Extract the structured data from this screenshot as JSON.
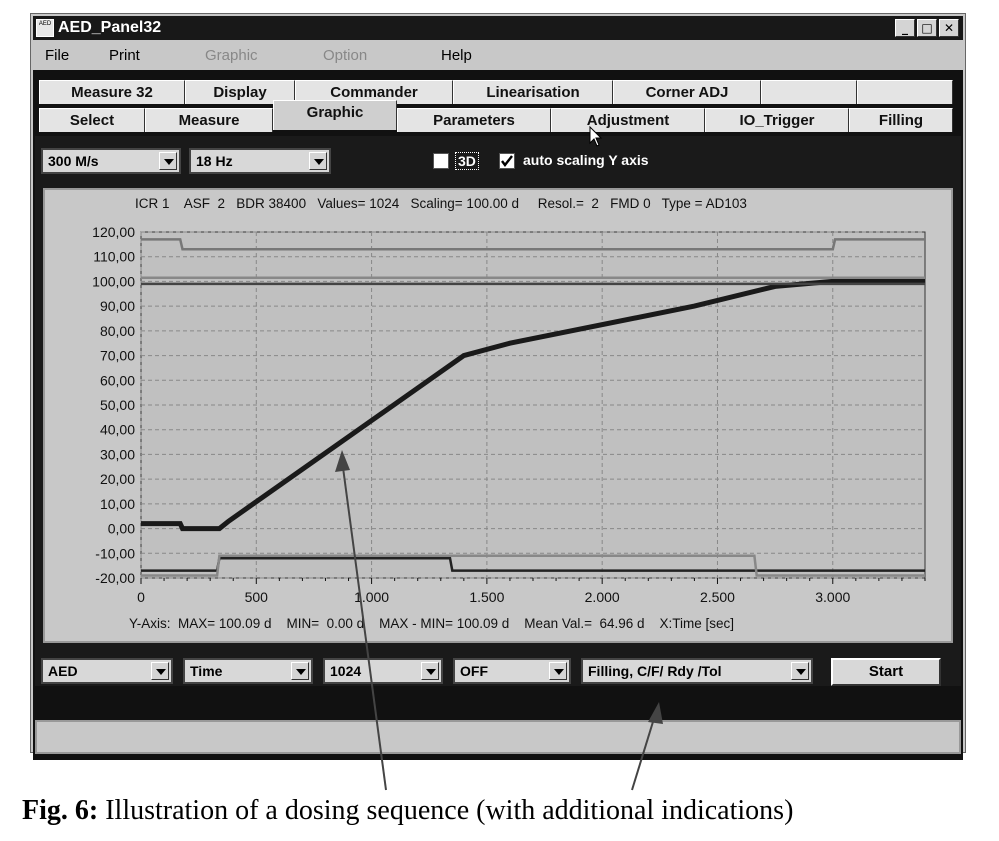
{
  "window": {
    "title": "AED_Panel32",
    "icon_name": "aed-app-icon",
    "icon_text": "AED"
  },
  "menu": {
    "items": [
      {
        "label": "File",
        "enabled": true
      },
      {
        "label": "Print",
        "enabled": true
      },
      {
        "label": "Graphic",
        "enabled": false
      },
      {
        "label": "Option",
        "enabled": false
      },
      {
        "label": "Help",
        "enabled": true
      }
    ]
  },
  "tabs": {
    "row1": [
      "Measure 32",
      "Display",
      "Commander",
      "Linearisation",
      "Corner ADJ",
      "",
      ""
    ],
    "row2": [
      "Select",
      "Measure",
      "Graphic",
      "Parameters",
      "Adjustment",
      "IO_Trigger",
      "Filling"
    ],
    "active": "Graphic"
  },
  "top_controls": {
    "rate": "300 M/s",
    "freq": "18  Hz",
    "three_d": {
      "label": "3D",
      "checked": false
    },
    "auto_scaling": {
      "label": "auto scaling Y axis",
      "checked": true
    }
  },
  "graph": {
    "info": "ICR 1    ASF  2   BDR 38400   Values= 1024   Scaling= 100.00 d     Resol.=  2   FMD 0   Type = AD103",
    "stats": "Y-Axis:  MAX= 100.09 d    MIN=  0.00 d    MAX - MIN= 100.09 d    Mean Val.=  64.96 d    X:Time [sec]",
    "y_ticks": [
      "120,00",
      "110,00",
      "100,00",
      "90,00",
      "80,00",
      "70,00",
      "60,00",
      "50,00",
      "40,00",
      "30,00",
      "20,00",
      "10,00",
      "0,00",
      "-10,00",
      "-20,00"
    ],
    "x_ticks": [
      "0",
      "500",
      "1.000",
      "1.500",
      "2.000",
      "2.500",
      "3.000"
    ]
  },
  "chart_data": {
    "type": "line",
    "xlim": [
      0,
      3400
    ],
    "ylim": [
      -20,
      120
    ],
    "grid": true,
    "series": [
      {
        "points": [
          [
            0,
            2
          ],
          [
            170,
            2
          ],
          [
            180,
            0
          ],
          [
            340,
            0
          ],
          [
            380,
            3
          ],
          [
            1400,
            70
          ],
          [
            1600,
            75
          ],
          [
            2400,
            90
          ],
          [
            2750,
            98
          ],
          [
            3000,
            100
          ],
          [
            3400,
            100
          ]
        ],
        "color": "#1a1a1a"
      },
      {
        "points": [
          [
            0,
            117
          ],
          [
            170,
            117
          ],
          [
            180,
            113
          ],
          [
            3000,
            113
          ],
          [
            3010,
            117
          ],
          [
            3400,
            117
          ]
        ],
        "color": "#777777"
      },
      {
        "points": [
          [
            0,
            99
          ],
          [
            3400,
            99
          ]
        ],
        "color": "#444444"
      },
      {
        "points": [
          [
            0,
            101.5
          ],
          [
            3400,
            101.5
          ]
        ],
        "color": "#888888"
      },
      {
        "points": [
          [
            0,
            -17
          ],
          [
            330,
            -17
          ],
          [
            340,
            -12
          ],
          [
            1340,
            -12
          ],
          [
            1350,
            -17
          ],
          [
            3400,
            -17
          ]
        ],
        "color": "#222222"
      },
      {
        "points": [
          [
            0,
            -19
          ],
          [
            330,
            -19
          ],
          [
            340,
            -11
          ],
          [
            2660,
            -11
          ],
          [
            2670,
            -19
          ],
          [
            3400,
            -19
          ]
        ],
        "color": "#888888"
      }
    ]
  },
  "bottom_controls": {
    "source": "AED",
    "xmode": "Time",
    "values": "1024",
    "trigger": "OFF",
    "mode": "Filling, C/F/ Rdy /Tol",
    "start": "Start"
  },
  "caption": {
    "prefix": "Fig. 6:",
    "text": "Illustration of a dosing sequence (with additional indications)"
  }
}
